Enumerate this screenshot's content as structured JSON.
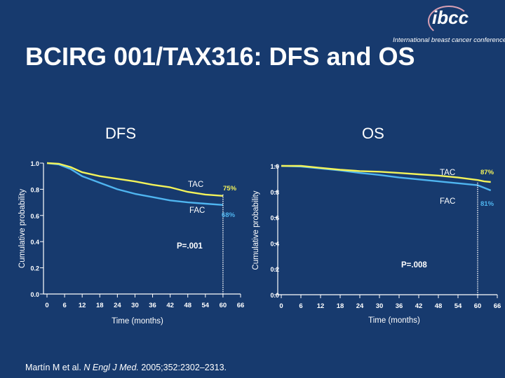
{
  "slide": {
    "title": "BCIRG 001/TAX316: DFS and OS",
    "logo_mark": "ibcc",
    "logo_text": "International breast cancer conference",
    "citation_authors": "Martín M et al. ",
    "citation_journal": "N Engl J Med.",
    "citation_rest": " 2005;352:2302–2313."
  },
  "colors": {
    "background": "#173a6e",
    "tac_line": "#f3f35a",
    "fac_line": "#4fb5f0"
  },
  "chart_data": [
    {
      "type": "line",
      "title": "DFS",
      "ylabel": "Cumulative probability",
      "xlabel": "Time (months)",
      "xlim": [
        0,
        66
      ],
      "ylim": [
        0,
        1.0
      ],
      "x_ticks": [
        0,
        6,
        12,
        18,
        24,
        30,
        36,
        42,
        48,
        54,
        60,
        66
      ],
      "y_ticks": [
        "0.0",
        "0.2",
        "0.4",
        "0.6",
        "0.8",
        "1.0"
      ],
      "series": [
        {
          "name": "TAC",
          "x": [
            0,
            4,
            8,
            12,
            18,
            24,
            30,
            36,
            42,
            48,
            54,
            60
          ],
          "values": [
            1.0,
            0.995,
            0.97,
            0.93,
            0.9,
            0.88,
            0.86,
            0.835,
            0.815,
            0.78,
            0.76,
            0.75
          ]
        },
        {
          "name": "FAC",
          "x": [
            0,
            4,
            8,
            12,
            18,
            24,
            30,
            36,
            42,
            48,
            54,
            60
          ],
          "values": [
            1.0,
            0.99,
            0.955,
            0.9,
            0.85,
            0.8,
            0.765,
            0.74,
            0.715,
            0.7,
            0.69,
            0.68
          ]
        }
      ],
      "annotations": {
        "tac_label": "TAC",
        "fac_label": "FAC",
        "tac_end": "75%",
        "fac_end": "68%",
        "p_value": "P=.001",
        "marker_x": 60
      }
    },
    {
      "type": "line",
      "title": "OS",
      "ylabel": "Cumulative probability",
      "xlabel": "Time (months)",
      "xlim": [
        0,
        66
      ],
      "ylim": [
        0,
        1.0
      ],
      "x_ticks": [
        0,
        6,
        12,
        18,
        24,
        30,
        36,
        42,
        48,
        54,
        60,
        66
      ],
      "y_ticks": [
        "0.0",
        "0.2",
        "0.4",
        "0.6",
        "0.8",
        "1.0"
      ],
      "series": [
        {
          "name": "TAC",
          "x": [
            0,
            6,
            12,
            18,
            24,
            30,
            36,
            42,
            48,
            54,
            60,
            62,
            64
          ],
          "values": [
            1.0,
            1.0,
            0.985,
            0.97,
            0.96,
            0.955,
            0.945,
            0.935,
            0.925,
            0.91,
            0.89,
            0.88,
            0.875
          ]
        },
        {
          "name": "FAC",
          "x": [
            0,
            6,
            12,
            18,
            24,
            30,
            36,
            42,
            48,
            54,
            60,
            62,
            64
          ],
          "values": [
            1.0,
            0.995,
            0.98,
            0.965,
            0.945,
            0.93,
            0.91,
            0.895,
            0.88,
            0.865,
            0.85,
            0.83,
            0.81
          ]
        }
      ],
      "annotations": {
        "tac_label": "TAC",
        "fac_label": "FAC",
        "tac_end": "87%",
        "fac_end": "81%",
        "p_value": "P=.008",
        "marker_x": 60
      }
    }
  ]
}
